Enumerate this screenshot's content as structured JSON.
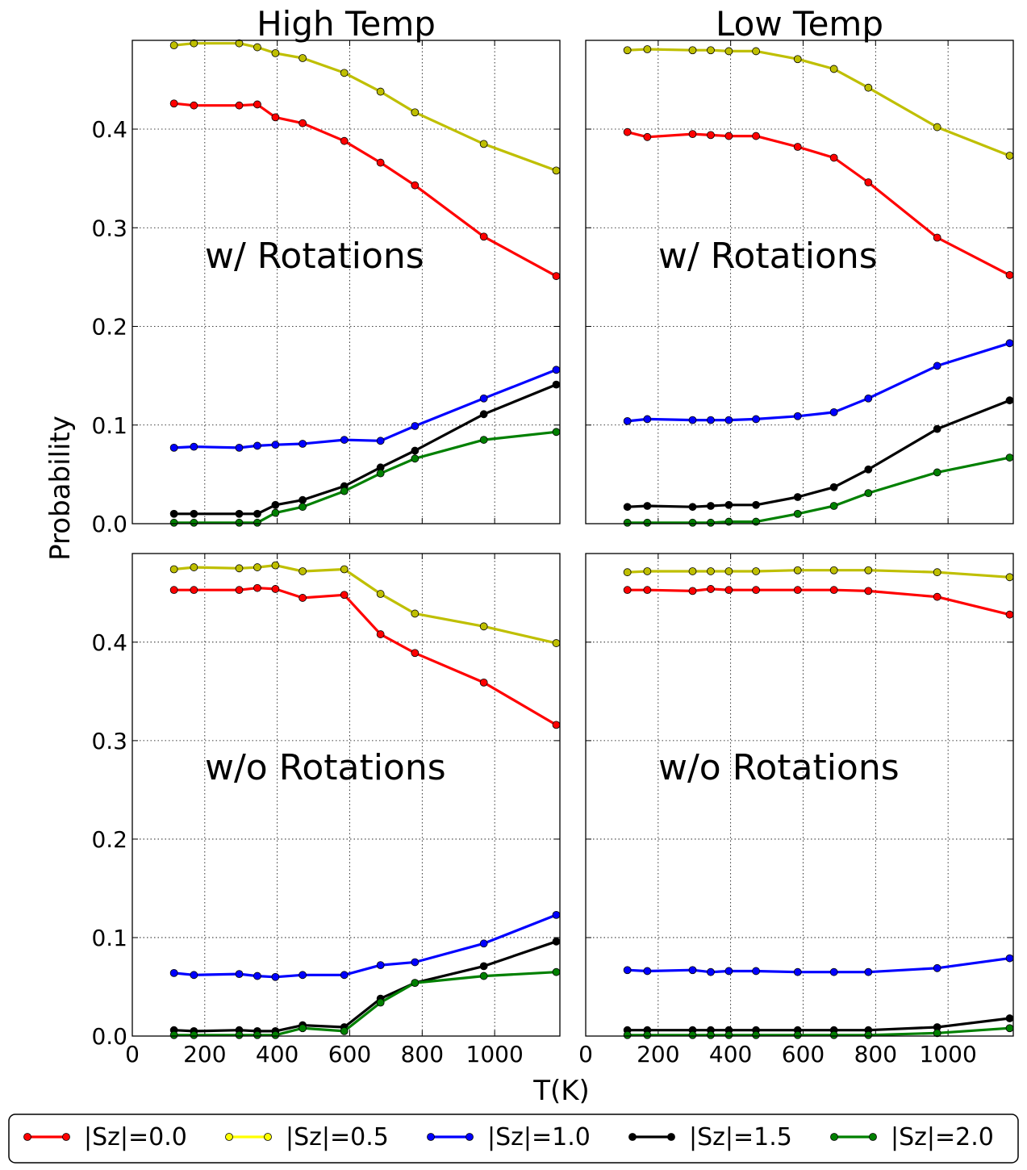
{
  "figure": {
    "ylabel": "Probability",
    "xlabel": "T(K)"
  },
  "colors": {
    "sz00": "#ff0000",
    "sz05": "#bfbf00",
    "sz05_marker": "#ffff00",
    "sz10": "#0000ff",
    "sz15": "#000000",
    "sz20": "#008000"
  },
  "legend": {
    "placement": "bottom",
    "entries": [
      "|Sz|=0.0",
      "|Sz|=0.5",
      "|Sz|=1.0",
      "|Sz|=1.5",
      "|Sz|=2.0"
    ]
  },
  "chart_data": [
    {
      "type": "line",
      "title": "High Temp",
      "annotation": "w/ Rotations",
      "xlim": [
        0,
        1180
      ],
      "ylim": [
        0,
        0.49
      ],
      "xticks": [
        "0",
        "200",
        "400",
        "600",
        "800",
        "1000"
      ],
      "yticks": [
        "0.0",
        "0.1",
        "0.2",
        "0.3",
        "0.4"
      ],
      "grid": true,
      "x": [
        115,
        170,
        295,
        345,
        395,
        470,
        585,
        685,
        780,
        970,
        1170
      ],
      "series": [
        {
          "name": "|Sz|=0.0",
          "values": [
            0.426,
            0.424,
            0.424,
            0.425,
            0.412,
            0.406,
            0.388,
            0.366,
            0.343,
            0.291,
            0.251
          ]
        },
        {
          "name": "|Sz|=0.5",
          "values": [
            0.485,
            0.487,
            0.487,
            0.483,
            0.477,
            0.472,
            0.457,
            0.438,
            0.417,
            0.385,
            0.358
          ]
        },
        {
          "name": "|Sz|=1.0",
          "values": [
            0.077,
            0.078,
            0.077,
            0.079,
            0.08,
            0.081,
            0.085,
            0.084,
            0.099,
            0.127,
            0.156
          ]
        },
        {
          "name": "|Sz|=1.5",
          "values": [
            0.01,
            0.01,
            0.01,
            0.01,
            0.019,
            0.024,
            0.038,
            0.057,
            0.074,
            0.111,
            0.141
          ]
        },
        {
          "name": "|Sz|=2.0",
          "values": [
            0.001,
            0.001,
            0.001,
            0.001,
            0.011,
            0.017,
            0.033,
            0.051,
            0.066,
            0.085,
            0.093
          ]
        }
      ]
    },
    {
      "type": "line",
      "title": "Low Temp",
      "annotation": "w/ Rotations",
      "xlim": [
        0,
        1180
      ],
      "ylim": [
        0,
        0.49
      ],
      "xticks": [
        "0",
        "200",
        "400",
        "600",
        "800",
        "1000"
      ],
      "yticks": [
        "0.0",
        "0.1",
        "0.2",
        "0.3",
        "0.4"
      ],
      "grid": true,
      "x": [
        115,
        170,
        295,
        345,
        395,
        470,
        585,
        685,
        780,
        970,
        1170
      ],
      "series": [
        {
          "name": "|Sz|=0.0",
          "values": [
            0.397,
            0.392,
            0.395,
            0.394,
            0.393,
            0.393,
            0.382,
            0.371,
            0.346,
            0.29,
            0.252
          ]
        },
        {
          "name": "|Sz|=0.5",
          "values": [
            0.48,
            0.481,
            0.48,
            0.48,
            0.479,
            0.479,
            0.471,
            0.461,
            0.442,
            0.402,
            0.373
          ]
        },
        {
          "name": "|Sz|=1.0",
          "values": [
            0.104,
            0.106,
            0.105,
            0.105,
            0.105,
            0.106,
            0.109,
            0.113,
            0.127,
            0.16,
            0.183
          ]
        },
        {
          "name": "|Sz|=1.5",
          "values": [
            0.017,
            0.018,
            0.017,
            0.018,
            0.019,
            0.019,
            0.027,
            0.037,
            0.055,
            0.096,
            0.125
          ]
        },
        {
          "name": "|Sz|=2.0",
          "values": [
            0.001,
            0.001,
            0.001,
            0.001,
            0.002,
            0.002,
            0.01,
            0.018,
            0.031,
            0.052,
            0.067
          ]
        }
      ]
    },
    {
      "type": "line",
      "title": "",
      "annotation": "w/o Rotations",
      "xlim": [
        0,
        1180
      ],
      "ylim": [
        0,
        0.49
      ],
      "xticks": [
        "0",
        "200",
        "400",
        "600",
        "800",
        "1000"
      ],
      "yticks": [
        "0.0",
        "0.1",
        "0.2",
        "0.3",
        "0.4"
      ],
      "grid": true,
      "x": [
        115,
        170,
        295,
        345,
        395,
        470,
        585,
        685,
        780,
        970,
        1170
      ],
      "series": [
        {
          "name": "|Sz|=0.0",
          "values": [
            0.453,
            0.453,
            0.453,
            0.455,
            0.454,
            0.445,
            0.448,
            0.408,
            0.389,
            0.359,
            0.316
          ]
        },
        {
          "name": "|Sz|=0.5",
          "values": [
            0.474,
            0.476,
            0.475,
            0.476,
            0.478,
            0.472,
            0.474,
            0.449,
            0.429,
            0.416,
            0.399
          ]
        },
        {
          "name": "|Sz|=1.0",
          "values": [
            0.064,
            0.062,
            0.063,
            0.061,
            0.06,
            0.062,
            0.062,
            0.072,
            0.075,
            0.094,
            0.123
          ]
        },
        {
          "name": "|Sz|=1.5",
          "values": [
            0.006,
            0.005,
            0.006,
            0.005,
            0.005,
            0.011,
            0.009,
            0.038,
            0.054,
            0.071,
            0.096
          ]
        },
        {
          "name": "|Sz|=2.0",
          "values": [
            0.001,
            0.001,
            0.001,
            0.001,
            0.001,
            0.008,
            0.005,
            0.034,
            0.054,
            0.061,
            0.065
          ]
        }
      ]
    },
    {
      "type": "line",
      "title": "",
      "annotation": "w/o Rotations",
      "xlim": [
        0,
        1180
      ],
      "ylim": [
        0,
        0.49
      ],
      "xticks": [
        "0",
        "200",
        "400",
        "600",
        "800",
        "1000"
      ],
      "yticks": [
        "0.0",
        "0.1",
        "0.2",
        "0.3",
        "0.4"
      ],
      "grid": true,
      "x": [
        115,
        170,
        295,
        345,
        395,
        470,
        585,
        685,
        780,
        970,
        1170
      ],
      "series": [
        {
          "name": "|Sz|=0.0",
          "values": [
            0.453,
            0.453,
            0.452,
            0.454,
            0.453,
            0.453,
            0.453,
            0.453,
            0.452,
            0.446,
            0.428
          ]
        },
        {
          "name": "|Sz|=0.5",
          "values": [
            0.471,
            0.472,
            0.472,
            0.472,
            0.472,
            0.472,
            0.473,
            0.473,
            0.473,
            0.471,
            0.466
          ]
        },
        {
          "name": "|Sz|=1.0",
          "values": [
            0.067,
            0.066,
            0.067,
            0.065,
            0.066,
            0.066,
            0.065,
            0.065,
            0.065,
            0.069,
            0.079
          ]
        },
        {
          "name": "|Sz|=1.5",
          "values": [
            0.006,
            0.006,
            0.006,
            0.006,
            0.006,
            0.006,
            0.006,
            0.006,
            0.006,
            0.009,
            0.018
          ]
        },
        {
          "name": "|Sz|=2.0",
          "values": [
            0.001,
            0.001,
            0.001,
            0.001,
            0.001,
            0.001,
            0.001,
            0.001,
            0.001,
            0.003,
            0.008
          ]
        }
      ]
    }
  ]
}
